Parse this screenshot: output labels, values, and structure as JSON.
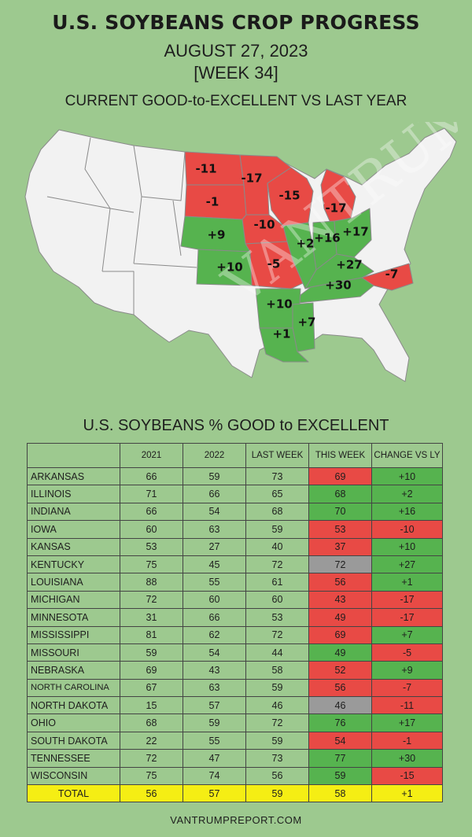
{
  "header": {
    "title": "U.S. SOYBEANS CROP PROGRESS",
    "date": "AUGUST 27, 2023",
    "week": "[WEEK 34]",
    "subtitle": "CURRENT GOOD-to-EXCELLENT VS LAST YEAR"
  },
  "map": {
    "watermark": "The VAN TRUMP report",
    "colors": {
      "decline": "#e84a45",
      "improve": "#56b34f",
      "other": "#f2f2f2"
    },
    "labels": [
      {
        "state": "NORTH DAKOTA",
        "text": "-11"
      },
      {
        "state": "MINNESOTA",
        "text": "-17"
      },
      {
        "state": "SOUTH DAKOTA",
        "text": "-1"
      },
      {
        "state": "WISCONSIN",
        "text": "-15"
      },
      {
        "state": "MICHIGAN",
        "text": "-17"
      },
      {
        "state": "IOWA",
        "text": "-10"
      },
      {
        "state": "NEBRASKA",
        "text": "+9"
      },
      {
        "state": "KANSAS",
        "text": "+10"
      },
      {
        "state": "MISSOURI",
        "text": "-5"
      },
      {
        "state": "ILLINOIS",
        "text": "+2"
      },
      {
        "state": "INDIANA",
        "text": "+16"
      },
      {
        "state": "OHIO",
        "text": "+17"
      },
      {
        "state": "KENTUCKY",
        "text": "+27"
      },
      {
        "state": "TENNESSEE",
        "text": "+30"
      },
      {
        "state": "NORTH CAROLINA",
        "text": "-7"
      },
      {
        "state": "ARKANSAS",
        "text": "+10"
      },
      {
        "state": "MISSISSIPPI",
        "text": "+7"
      },
      {
        "state": "LOUISIANA",
        "text": "+1"
      }
    ]
  },
  "table": {
    "title": "U.S. SOYBEANS % GOOD to EXCELLENT",
    "columns": [
      "2021",
      "2022",
      "LAST WEEK",
      "THIS WEEK",
      "CHANGE VS LY"
    ],
    "rows": [
      {
        "state": "ARKANSAS",
        "y2021": "66",
        "y2022": "59",
        "last_week": "73",
        "this_week": "69",
        "change": "+10",
        "tw_color": "red",
        "ch_color": "green"
      },
      {
        "state": "ILLINOIS",
        "y2021": "71",
        "y2022": "66",
        "last_week": "65",
        "this_week": "68",
        "change": "+2",
        "tw_color": "green",
        "ch_color": "green"
      },
      {
        "state": "INDIANA",
        "y2021": "66",
        "y2022": "54",
        "last_week": "68",
        "this_week": "70",
        "change": "+16",
        "tw_color": "green",
        "ch_color": "green"
      },
      {
        "state": "IOWA",
        "y2021": "60",
        "y2022": "63",
        "last_week": "59",
        "this_week": "53",
        "change": "-10",
        "tw_color": "red",
        "ch_color": "red"
      },
      {
        "state": "KANSAS",
        "y2021": "53",
        "y2022": "27",
        "last_week": "40",
        "this_week": "37",
        "change": "+10",
        "tw_color": "red",
        "ch_color": "green"
      },
      {
        "state": "KENTUCKY",
        "y2021": "75",
        "y2022": "45",
        "last_week": "72",
        "this_week": "72",
        "change": "+27",
        "tw_color": "gray",
        "ch_color": "green"
      },
      {
        "state": "LOUISIANA",
        "y2021": "88",
        "y2022": "55",
        "last_week": "61",
        "this_week": "56",
        "change": "+1",
        "tw_color": "red",
        "ch_color": "green"
      },
      {
        "state": "MICHIGAN",
        "y2021": "72",
        "y2022": "60",
        "last_week": "60",
        "this_week": "43",
        "change": "-17",
        "tw_color": "red",
        "ch_color": "red"
      },
      {
        "state": "MINNESOTA",
        "y2021": "31",
        "y2022": "66",
        "last_week": "53",
        "this_week": "49",
        "change": "-17",
        "tw_color": "red",
        "ch_color": "red"
      },
      {
        "state": "MISSISSIPPI",
        "y2021": "81",
        "y2022": "62",
        "last_week": "72",
        "this_week": "69",
        "change": "+7",
        "tw_color": "red",
        "ch_color": "green"
      },
      {
        "state": "MISSOURI",
        "y2021": "59",
        "y2022": "54",
        "last_week": "44",
        "this_week": "49",
        "change": "-5",
        "tw_color": "green",
        "ch_color": "red"
      },
      {
        "state": "NEBRASKA",
        "y2021": "69",
        "y2022": "43",
        "last_week": "58",
        "this_week": "52",
        "change": "+9",
        "tw_color": "red",
        "ch_color": "green"
      },
      {
        "state": "NORTH CAROLINA",
        "y2021": "67",
        "y2022": "63",
        "last_week": "59",
        "this_week": "56",
        "change": "-7",
        "tw_color": "red",
        "ch_color": "red"
      },
      {
        "state": "NORTH DAKOTA",
        "y2021": "15",
        "y2022": "57",
        "last_week": "46",
        "this_week": "46",
        "change": "-11",
        "tw_color": "gray",
        "ch_color": "red"
      },
      {
        "state": "OHIO",
        "y2021": "68",
        "y2022": "59",
        "last_week": "72",
        "this_week": "76",
        "change": "+17",
        "tw_color": "green",
        "ch_color": "green"
      },
      {
        "state": "SOUTH DAKOTA",
        "y2021": "22",
        "y2022": "55",
        "last_week": "59",
        "this_week": "54",
        "change": "-1",
        "tw_color": "red",
        "ch_color": "red"
      },
      {
        "state": "TENNESSEE",
        "y2021": "72",
        "y2022": "47",
        "last_week": "73",
        "this_week": "77",
        "change": "+30",
        "tw_color": "green",
        "ch_color": "green"
      },
      {
        "state": "WISCONSIN",
        "y2021": "75",
        "y2022": "74",
        "last_week": "56",
        "this_week": "59",
        "change": "-15",
        "tw_color": "green",
        "ch_color": "red"
      }
    ],
    "total": {
      "label": "TOTAL",
      "y2021": "56",
      "y2022": "57",
      "last_week": "59",
      "this_week": "58",
      "change": "+1",
      "color": "#f5ee14"
    }
  },
  "footer": "VANTRUMPREPORT.COM"
}
